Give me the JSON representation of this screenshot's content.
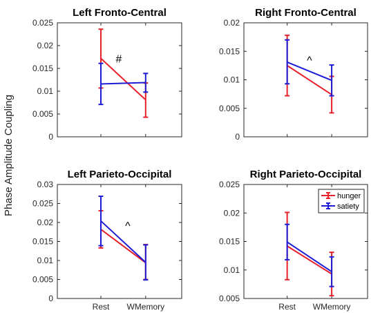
{
  "figure": {
    "ylabel": "Phase Amplitude Coupling"
  },
  "colors": {
    "hunger": "#e8202a",
    "satiety": "#1c1cd6",
    "axis": "#262626"
  },
  "chart_data": [
    {
      "type": "line",
      "title": "Left Fronto-Central",
      "categories": [
        "Rest",
        "WMemory"
      ],
      "show_xticklabels": false,
      "ylim": [
        0,
        0.025
      ],
      "yticks": [
        "0",
        "0.005",
        "0.01",
        "0.015",
        "0.02",
        "0.025"
      ],
      "series": [
        {
          "name": "hunger",
          "values": [
            0.0172,
            0.0081
          ],
          "lower": [
            0.0107,
            0.0043
          ],
          "upper": [
            0.0236,
            0.0118
          ]
        },
        {
          "name": "satiety",
          "values": [
            0.0116,
            0.0119
          ],
          "lower": [
            0.0071,
            0.0098
          ],
          "upper": [
            0.0161,
            0.0139
          ]
        }
      ],
      "annotation": {
        "text": "#",
        "x": 0.4,
        "y": 0.0163
      }
    },
    {
      "type": "line",
      "title": "Right Fronto-Central",
      "categories": [
        "Rest",
        "WMemory"
      ],
      "show_xticklabels": false,
      "ylim": [
        0,
        0.02
      ],
      "yticks": [
        "0",
        "0.005",
        "0.01",
        "0.015",
        "0.02"
      ],
      "series": [
        {
          "name": "hunger",
          "values": [
            0.0125,
            0.0074
          ],
          "lower": [
            0.0072,
            0.0042
          ],
          "upper": [
            0.0178,
            0.0106
          ]
        },
        {
          "name": "satiety",
          "values": [
            0.0131,
            0.0099
          ],
          "lower": [
            0.0093,
            0.0072
          ],
          "upper": [
            0.017,
            0.0126
          ]
        }
      ],
      "annotation": {
        "text": "^",
        "x": 0.5,
        "y": 0.0128
      }
    },
    {
      "type": "line",
      "title": "Left Parieto-Occipital",
      "categories": [
        "Rest",
        "WMemory"
      ],
      "show_xticklabels": true,
      "ylim": [
        0,
        0.03
      ],
      "yticks": [
        "0",
        "0.005",
        "0.01",
        "0.015",
        "0.02",
        "0.025",
        "0.03"
      ],
      "series": [
        {
          "name": "hunger",
          "values": [
            0.0182,
            0.0094
          ],
          "lower": [
            0.0133,
            0.005
          ],
          "upper": [
            0.0231,
            0.0142
          ]
        },
        {
          "name": "satiety",
          "values": [
            0.0204,
            0.0095
          ],
          "lower": [
            0.0139,
            0.0049
          ],
          "upper": [
            0.0269,
            0.0141
          ]
        }
      ],
      "annotation": {
        "text": "^",
        "x": 0.6,
        "y": 0.0182
      }
    },
    {
      "type": "line",
      "title": "Right Parieto-Occipital",
      "categories": [
        "Rest",
        "WMemory"
      ],
      "show_xticklabels": true,
      "ylim": [
        0.005,
        0.025
      ],
      "yticks": [
        "0.005",
        "0.01",
        "0.015",
        "0.02",
        "0.025"
      ],
      "series": [
        {
          "name": "hunger",
          "values": [
            0.0142,
            0.0093
          ],
          "lower": [
            0.0083,
            0.0055
          ],
          "upper": [
            0.0201,
            0.0131
          ]
        },
        {
          "name": "satiety",
          "values": [
            0.0149,
            0.0097
          ],
          "lower": [
            0.0118,
            0.0071
          ],
          "upper": [
            0.018,
            0.0123
          ]
        }
      ],
      "legend": {
        "position": "top-right",
        "entries": [
          "hunger",
          "satiety"
        ]
      }
    }
  ]
}
